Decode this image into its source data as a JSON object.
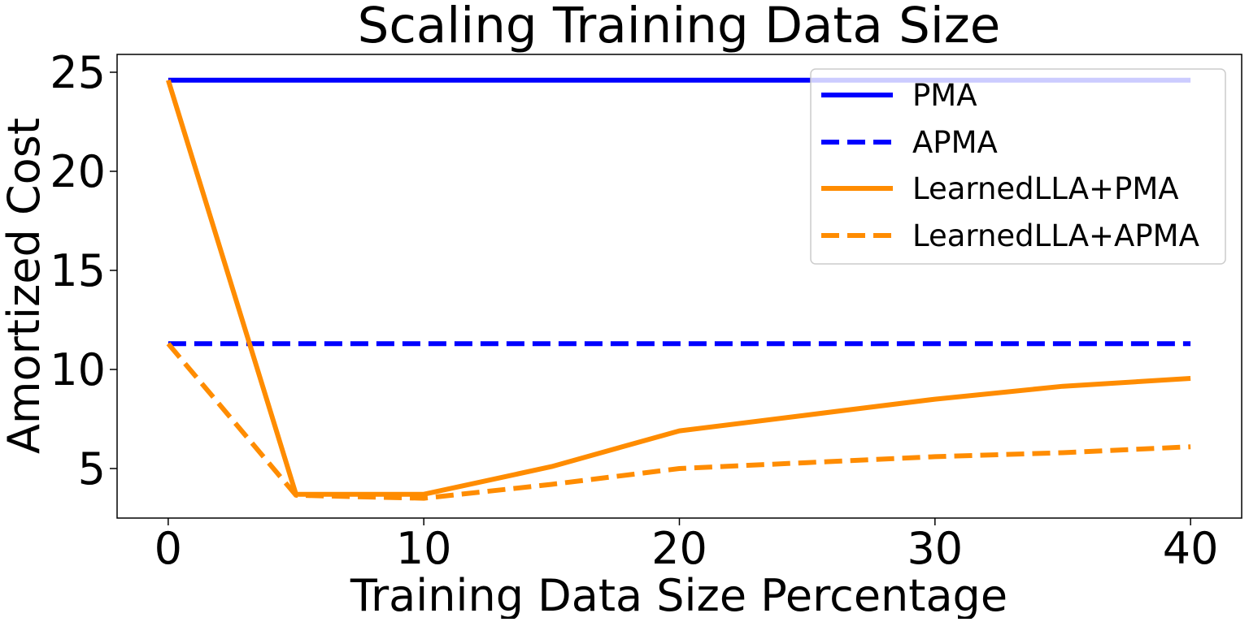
{
  "chart_data": {
    "type": "line",
    "title": "Scaling Training Data Size",
    "xlabel": "Training Data Size Percentage",
    "ylabel": "Amortized Cost",
    "xlim": [
      -2,
      42
    ],
    "ylim": [
      2.5,
      25.9
    ],
    "xticks": [
      0,
      10,
      20,
      30,
      40
    ],
    "xtick_labels": [
      "0",
      "10",
      "20",
      "30",
      "40"
    ],
    "yticks": [
      5,
      10,
      15,
      20,
      25
    ],
    "ytick_labels": [
      "5",
      "10",
      "15",
      "20",
      "25"
    ],
    "grid": false,
    "legend_position": "upper-right",
    "series": [
      {
        "name": "PMA",
        "color": "#0000ff",
        "style": "solid",
        "x": [
          0,
          5,
          10,
          15,
          20,
          25,
          30,
          35,
          40
        ],
        "y": [
          24.6,
          24.6,
          24.6,
          24.6,
          24.6,
          24.6,
          24.6,
          24.6,
          24.6
        ]
      },
      {
        "name": "APMA",
        "color": "#0000ff",
        "style": "dashed",
        "x": [
          0,
          5,
          10,
          15,
          20,
          25,
          30,
          35,
          40
        ],
        "y": [
          11.3,
          11.3,
          11.3,
          11.3,
          11.3,
          11.3,
          11.3,
          11.3,
          11.3
        ]
      },
      {
        "name": "LearnedLLA+PMA",
        "color": "#ff8c00",
        "style": "solid",
        "x": [
          0,
          5,
          10,
          15,
          20,
          25,
          30,
          35,
          40
        ],
        "y": [
          24.6,
          3.7,
          3.7,
          5.1,
          6.9,
          7.7,
          8.5,
          9.15,
          9.55
        ]
      },
      {
        "name": "LearnedLLA+APMA",
        "color": "#ff8c00",
        "style": "dashed",
        "x": [
          0,
          5,
          10,
          15,
          20,
          25,
          30,
          35,
          40
        ],
        "y": [
          11.3,
          3.65,
          3.5,
          4.2,
          5.0,
          5.3,
          5.6,
          5.8,
          6.1
        ]
      }
    ]
  }
}
